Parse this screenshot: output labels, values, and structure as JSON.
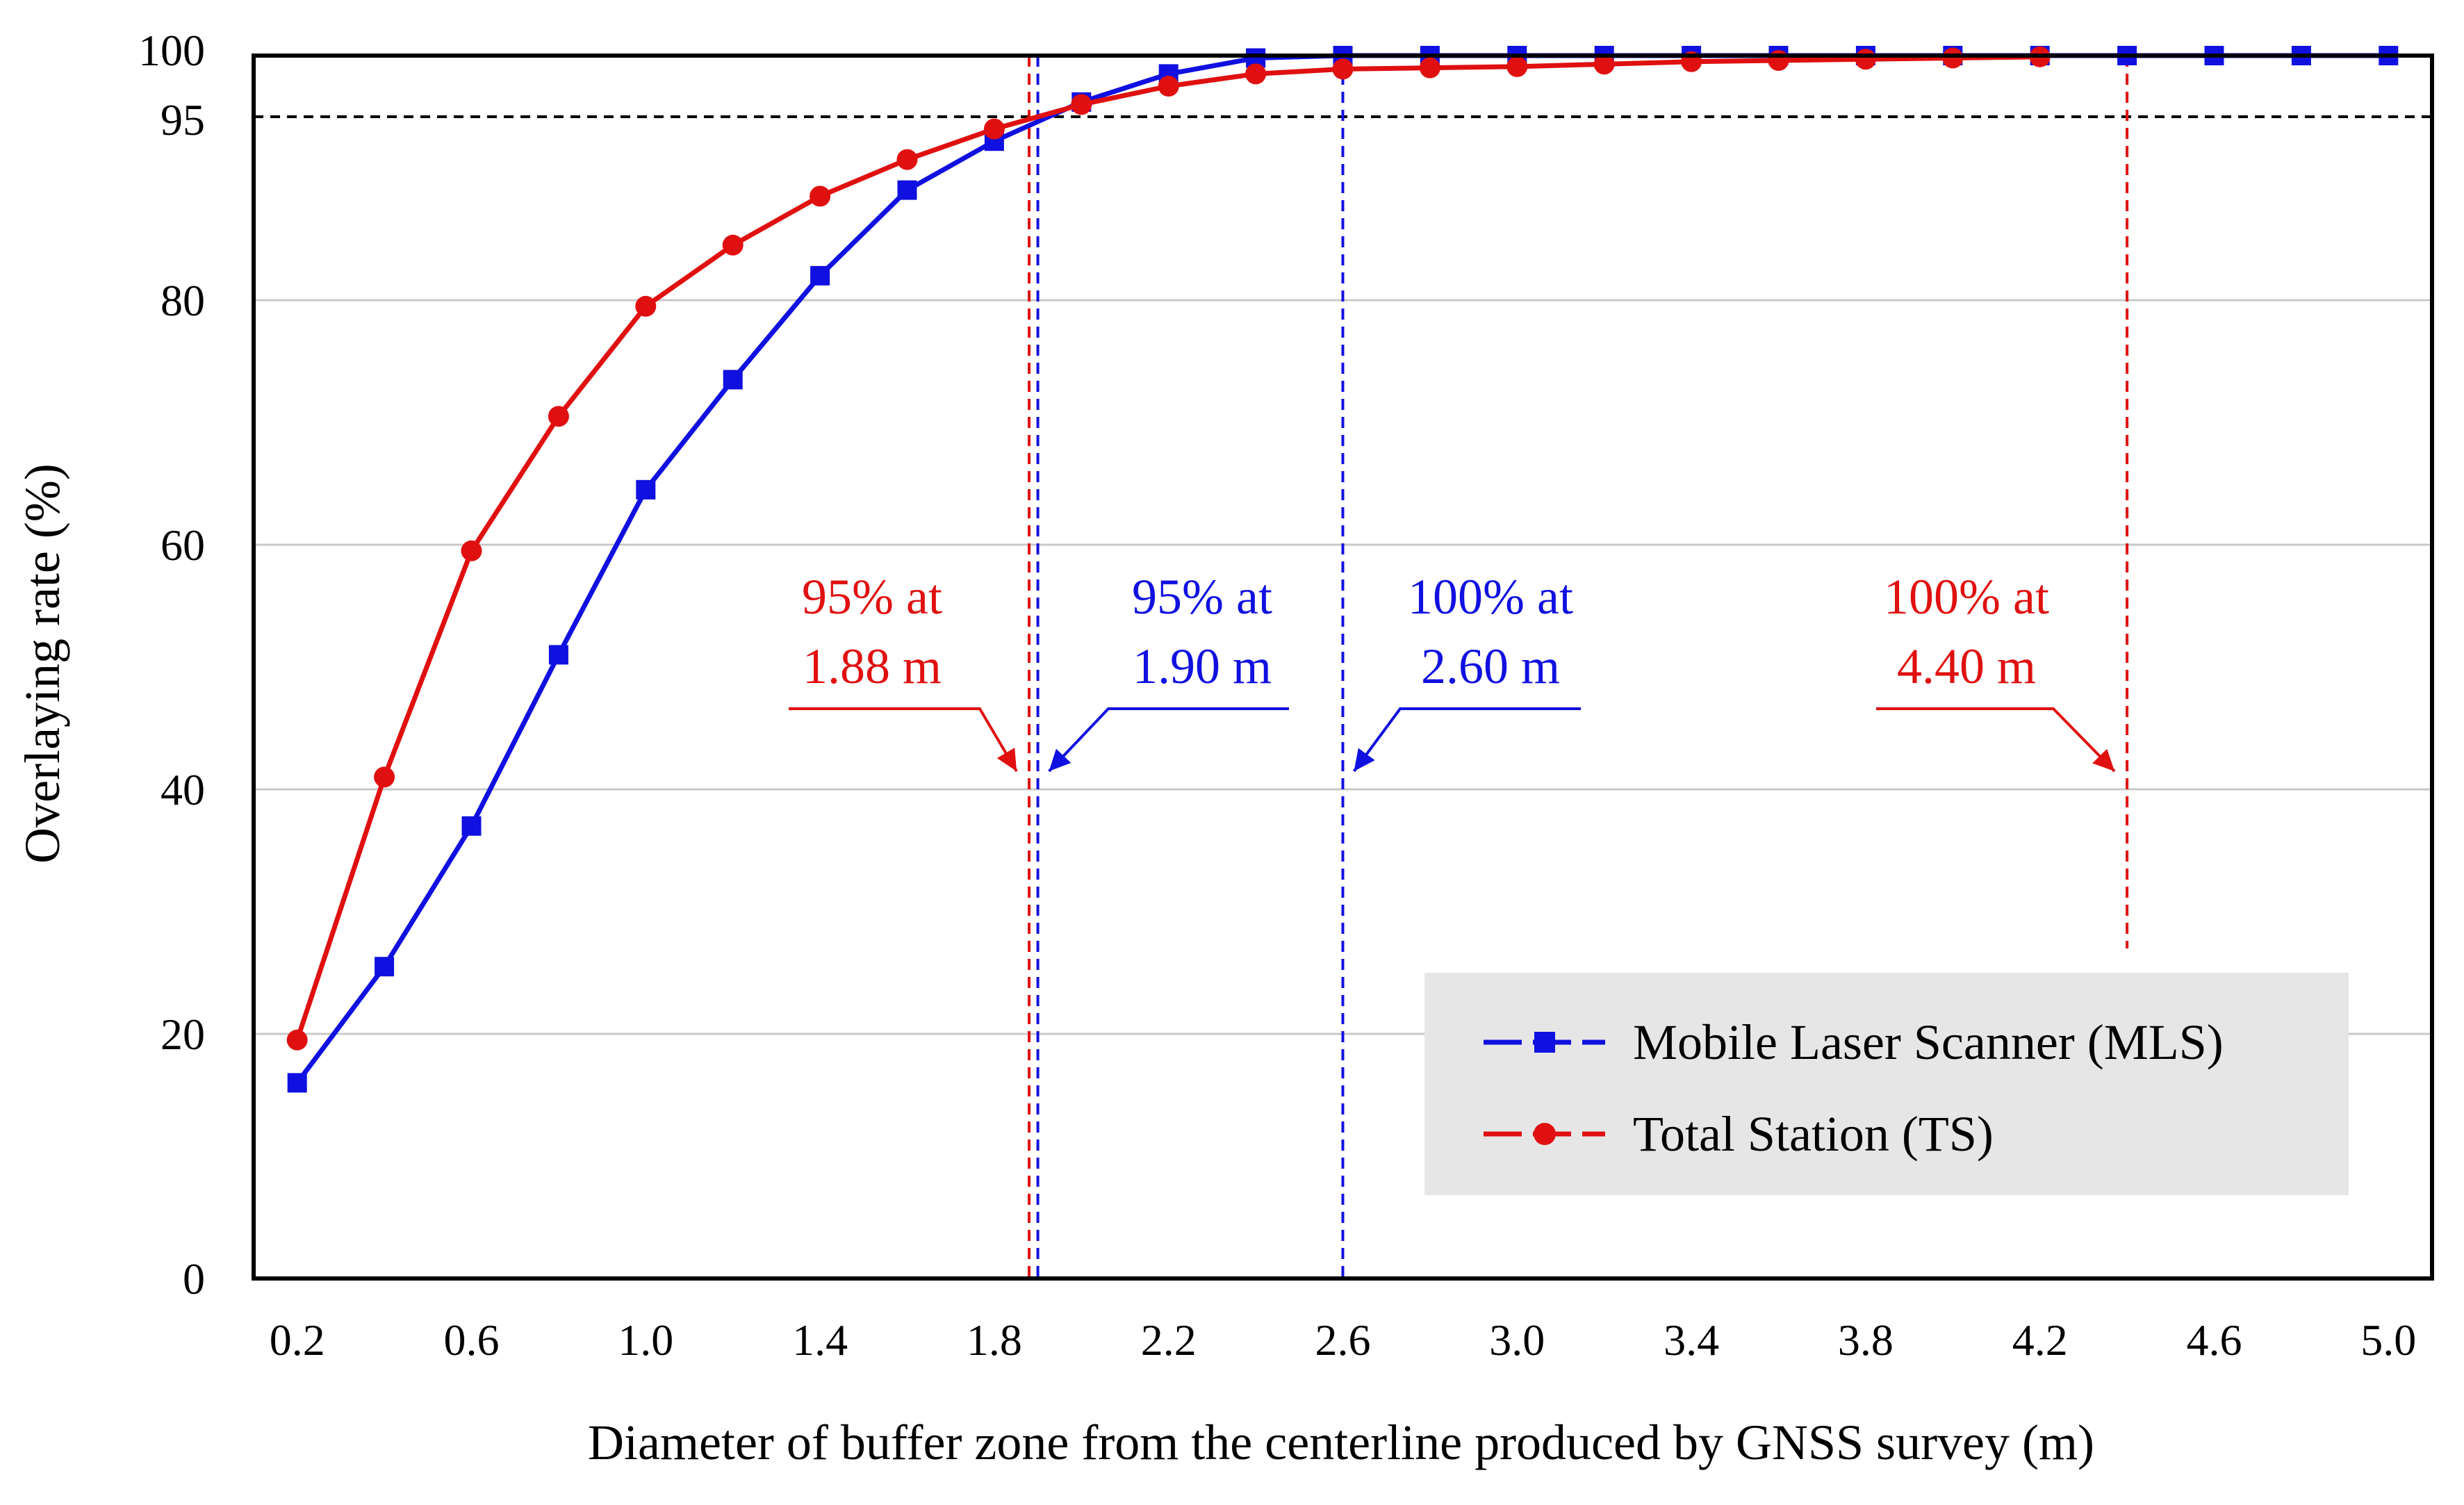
{
  "chart_data": {
    "type": "line",
    "xlabel": "Diameter of buffer zone from the centerline produced by GNSS survey (m)",
    "ylabel": "Overlaying rate (%)",
    "xlim": [
      0.1,
      5.1
    ],
    "ylim": [
      0,
      100
    ],
    "x_ticks": [
      "0.2",
      "0.6",
      "1.0",
      "1.4",
      "1.8",
      "2.2",
      "2.6",
      "3.0",
      "3.4",
      "3.8",
      "4.2",
      "4.6",
      "5.0"
    ],
    "y_ticks": [
      "0",
      "20",
      "40",
      "60",
      "80",
      "95",
      "100"
    ],
    "grid_y": [
      20,
      40,
      60,
      80,
      100
    ],
    "reference_line_y": 95,
    "colors": {
      "mls": "#1010e0",
      "ts": "#e01010"
    },
    "series": [
      {
        "name": "Mobile Laser Scanner (MLS)",
        "marker": "square",
        "color": "#1010e0",
        "x": [
          0.2,
          0.4,
          0.6,
          0.8,
          1.0,
          1.2,
          1.4,
          1.6,
          1.8,
          2.0,
          2.2,
          2.4,
          2.6,
          2.8,
          3.0,
          3.2,
          3.4,
          3.6,
          3.8,
          4.0,
          4.2,
          4.4,
          4.6,
          4.8,
          5.0
        ],
        "values": [
          16,
          25.5,
          37,
          51,
          64.5,
          73.5,
          82,
          89,
          93,
          96.2,
          98.5,
          99.8,
          100,
          100,
          100,
          100,
          100,
          100,
          100,
          100,
          100,
          100,
          100,
          100,
          100
        ]
      },
      {
        "name": "Total Station (TS)",
        "marker": "circle",
        "color": "#e01010",
        "x": [
          0.2,
          0.4,
          0.6,
          0.8,
          1.0,
          1.2,
          1.4,
          1.6,
          1.8,
          2.0,
          2.2,
          2.4,
          2.6,
          2.8,
          3.0,
          3.2,
          3.4,
          3.6,
          3.8,
          4.0,
          4.2
        ],
        "values": [
          19.5,
          41,
          59.5,
          70.5,
          79.5,
          84.5,
          88.5,
          91.5,
          94,
          96,
          97.5,
          98.5,
          98.9,
          99,
          99.1,
          99.3,
          99.5,
          99.6,
          99.7,
          99.8,
          99.9
        ]
      }
    ],
    "vertical_markers": [
      {
        "x": 1.88,
        "color": "#e01010",
        "line1": "95% at",
        "line2": "1.88 m"
      },
      {
        "x": 1.9,
        "color": "#1010e0",
        "line1": "95% at",
        "line2": "1.90 m"
      },
      {
        "x": 2.6,
        "color": "#1010e0",
        "line1": "100% at",
        "line2": "2.60 m"
      },
      {
        "x": 4.4,
        "color": "#e01010",
        "line1": "100% at",
        "line2": "4.40 m"
      }
    ],
    "legend": {
      "placement": "bottom-right",
      "entries": [
        "Mobile Laser Scanner (MLS)",
        "Total Station (TS)"
      ]
    }
  }
}
